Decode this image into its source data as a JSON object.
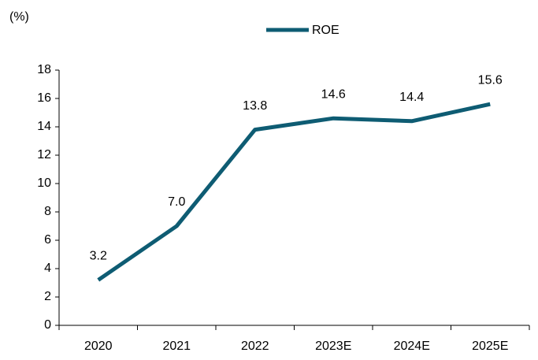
{
  "chart_data": {
    "type": "line",
    "y_label": "(%)",
    "categories": [
      "2020",
      "2021",
      "2022",
      "2023E",
      "2024E",
      "2025E"
    ],
    "series": [
      {
        "name": "ROE",
        "color": "#0e5c73",
        "values": [
          3.2,
          7.0,
          13.8,
          14.6,
          14.4,
          15.6
        ],
        "value_labels": [
          "3.2",
          "7.0",
          "13.8",
          "14.6",
          "14.4",
          "15.6"
        ]
      }
    ],
    "ylim": [
      0,
      18
    ],
    "yticks": [
      0,
      2,
      4,
      6,
      8,
      10,
      12,
      14,
      16,
      18
    ],
    "legend": "top"
  }
}
